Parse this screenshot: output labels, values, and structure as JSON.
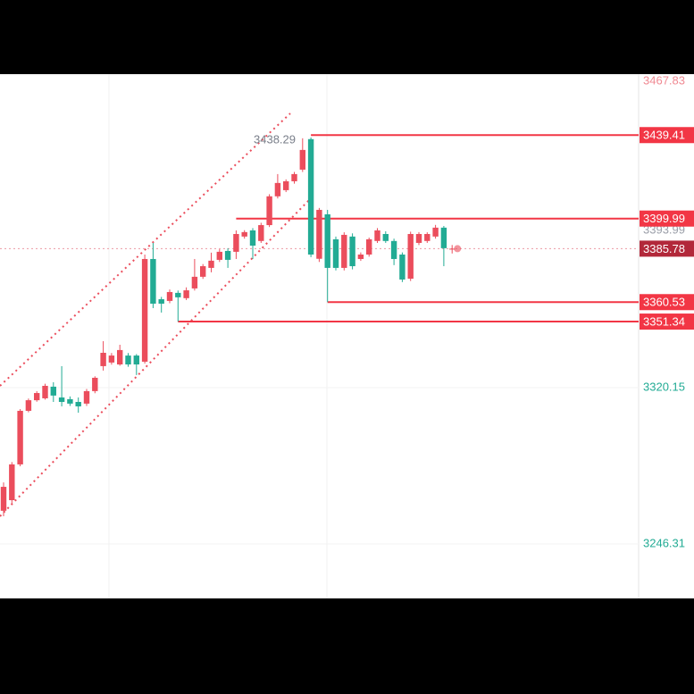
{
  "chart_data": {
    "type": "candlestick",
    "up_color": "#eb4d5c",
    "down_color": "#22ab94",
    "open": [
      3262.0,
      3267.0,
      3283.9,
      3309.2,
      3314.2,
      3315.1,
      3320.6,
      3315.5,
      3314.7,
      3313.4,
      3312.6,
      3318.5,
      3330.3,
      3332.0,
      3331.1,
      3335.3,
      3335.3,
      3332.4,
      3380.9,
      3361.9,
      3361.1,
      3364.9,
      3362.4,
      3367.0,
      3372.5,
      3376.7,
      3380.5,
      3384.7,
      3384.3,
      3391.5,
      3394.4,
      3389.4,
      3396.9,
      3410.5,
      3413.4,
      3417.6,
      3423.1,
      3437.5,
      3381.0,
      3402.0,
      3390.2,
      3376.7,
      3391.5,
      3380.9,
      3383.0,
      3389.4,
      3392.7,
      3389.4,
      3383.0,
      3371.6,
      3388.5,
      3389.4,
      3391.5,
      3395.7,
      3385.5
    ],
    "high": [
      3275.4,
      3285.0,
      3310.0,
      3315.0,
      3318.5,
      3322.0,
      3322.7,
      3330.3,
      3316.0,
      3315.5,
      3319.5,
      3325.5,
      3342.1,
      3336.5,
      3340.4,
      3336.5,
      3336.0,
      3383.0,
      3388.5,
      3363.0,
      3366.5,
      3366.0,
      3367.5,
      3380.9,
      3378.5,
      3383.9,
      3385.5,
      3386.0,
      3394.4,
      3394.5,
      3395.5,
      3398.0,
      3411.5,
      3421.0,
      3418.5,
      3422.0,
      3437.9,
      3438.29,
      3405.0,
      3404.1,
      3391.5,
      3393.5,
      3393.0,
      3384.0,
      3391.0,
      3395.5,
      3394.0,
      3390.5,
      3384.0,
      3393.8,
      3393.6,
      3393.5,
      3397.0,
      3396.5,
      3387.5
    ],
    "low": [
      3259.4,
      3265.5,
      3283.0,
      3308.5,
      3313.5,
      3314.5,
      3313.4,
      3311.3,
      3311.5,
      3308.3,
      3311.5,
      3317.5,
      3328.2,
      3331.0,
      3330.5,
      3330.0,
      3326.1,
      3331.5,
      3357.7,
      3355.6,
      3360.0,
      3351.34,
      3361.5,
      3366.0,
      3371.5,
      3374.6,
      3379.5,
      3376.7,
      3380.9,
      3390.5,
      3380.9,
      3388.5,
      3396.0,
      3409.5,
      3412.5,
      3416.5,
      3422.0,
      3381.8,
      3379.5,
      3360.53,
      3375.5,
      3375.5,
      3376.0,
      3380.0,
      3382.0,
      3388.5,
      3388.5,
      3378.0,
      3370.0,
      3370.5,
      3387.5,
      3388.5,
      3390.5,
      3377.5,
      3383.5
    ],
    "close": [
      3273.3,
      3283.9,
      3309.2,
      3314.2,
      3317.6,
      3321.0,
      3316.4,
      3313.4,
      3312.6,
      3311.3,
      3318.5,
      3324.8,
      3336.6,
      3335.3,
      3337.9,
      3331.1,
      3331.1,
      3380.9,
      3359.8,
      3359.8,
      3365.3,
      3362.8,
      3366.1,
      3372.5,
      3377.5,
      3380.1,
      3384.3,
      3380.5,
      3392.7,
      3393.6,
      3387.2,
      3396.9,
      3410.5,
      3416.8,
      3417.6,
      3421.0,
      3432.4,
      3383.0,
      3404.1,
      3376.7,
      3376.7,
      3392.3,
      3377.5,
      3383.0,
      3390.2,
      3394.4,
      3389.4,
      3380.9,
      3371.2,
      3392.7,
      3392.7,
      3392.7,
      3395.7,
      3386.0,
      3385.78
    ],
    "ylim": [
      3220.6,
      3468.2
    ],
    "yticks": [
      3467.83,
      3320.15,
      3246.31
    ],
    "levels": [
      3439.41,
      3399.99,
      3360.53,
      3351.34
    ],
    "level_color": "#f23645",
    "last_price": 3385.78,
    "last_price_color": "#b2283a",
    "marker_price": 3393.99
  }
}
